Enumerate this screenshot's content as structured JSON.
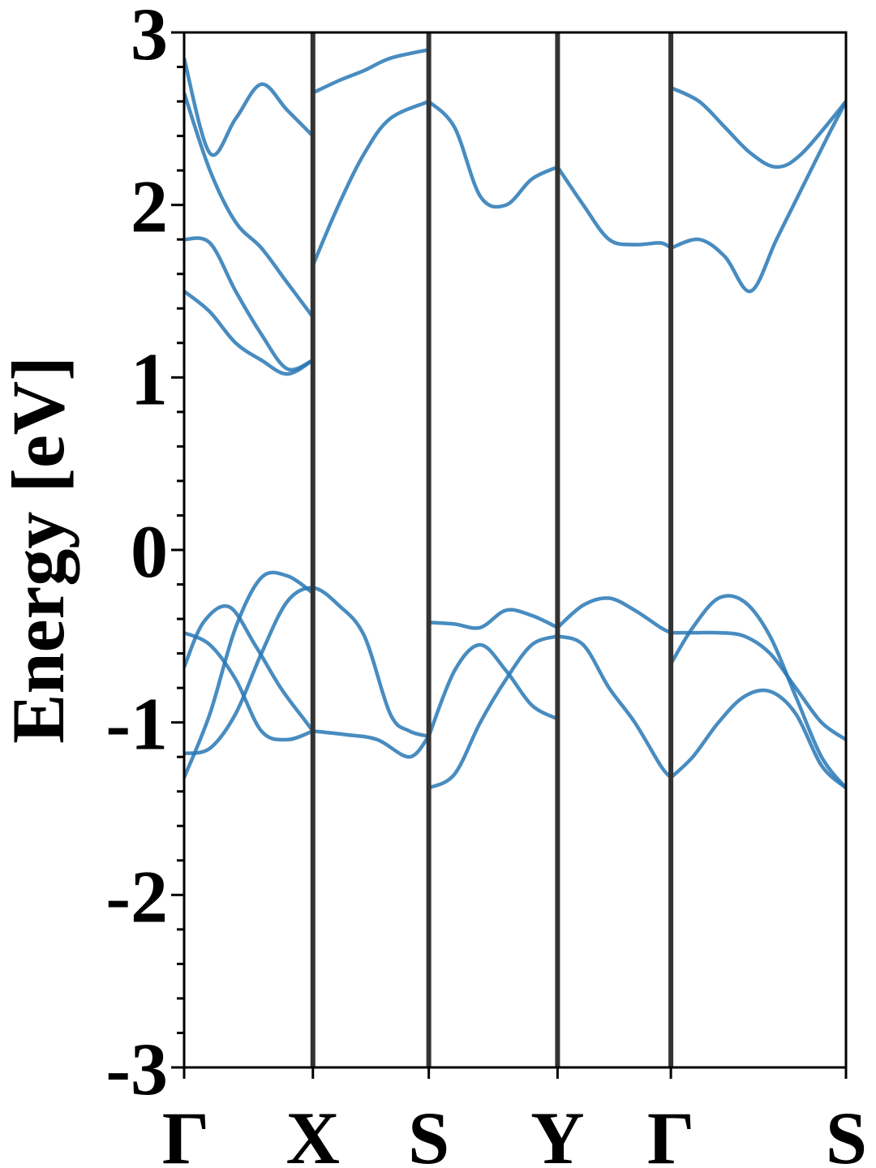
{
  "chart_data": {
    "type": "line",
    "title": "",
    "ylabel": "Energy [eV]",
    "xlabel": "",
    "ylim": [
      -3,
      3
    ],
    "y_ticks": [
      "-3",
      "-2",
      "-1",
      "0",
      "1",
      "2",
      "3"
    ],
    "y_minor_step": 0.2,
    "grid": false,
    "legend": "none",
    "line_color": "#2878b5",
    "kpath": [
      {
        "label": "Γ",
        "x": 0.0
      },
      {
        "label": "X",
        "x": 1.0
      },
      {
        "label": "S",
        "x": 1.9
      },
      {
        "label": "Y",
        "x": 2.9
      },
      {
        "label": "Γ",
        "x": 3.78
      },
      {
        "label": "S",
        "x": 5.14
      }
    ],
    "series": [
      {
        "x": [
          0.0,
          0.2,
          0.4,
          0.6,
          0.8,
          1.0,
          1.2,
          1.4,
          1.6,
          1.75,
          1.9
        ],
        "values": [
          -1.18,
          -1.15,
          -0.95,
          -0.6,
          -0.3,
          -0.22,
          -0.32,
          -0.5,
          -0.95,
          -1.05,
          -1.08
        ]
      },
      {
        "x": [
          0.0,
          0.2,
          0.4,
          0.6,
          0.8,
          1.0
        ],
        "values": [
          -1.32,
          -0.95,
          -0.45,
          -0.16,
          -0.15,
          -0.25
        ]
      },
      {
        "x": [
          0.0,
          0.2,
          0.4,
          0.6,
          0.8,
          1.0
        ],
        "values": [
          -0.48,
          -0.55,
          -0.75,
          -1.05,
          -1.1,
          -1.05
        ]
      },
      {
        "x": [
          0.0,
          0.15,
          0.35,
          0.55,
          0.75,
          0.95,
          1.0
        ],
        "values": [
          -0.68,
          -0.42,
          -0.33,
          -0.55,
          -0.8,
          -1.0,
          -1.05
        ]
      },
      {
        "x": [
          1.0,
          1.25,
          1.5,
          1.75,
          1.9
        ],
        "values": [
          -1.05,
          -1.07,
          -1.1,
          -1.2,
          -1.08
        ]
      },
      {
        "x": [
          1.9,
          2.1,
          2.3,
          2.5,
          2.7,
          2.9
        ],
        "values": [
          -1.08,
          -0.7,
          -0.55,
          -0.7,
          -0.9,
          -0.98
        ]
      },
      {
        "x": [
          1.9,
          2.1,
          2.3,
          2.5,
          2.7,
          2.9
        ],
        "values": [
          -1.38,
          -1.3,
          -1.0,
          -0.75,
          -0.55,
          -0.5
        ]
      },
      {
        "x": [
          1.9,
          2.1,
          2.3,
          2.5,
          2.7,
          2.9
        ],
        "values": [
          -0.42,
          -0.43,
          -0.45,
          -0.35,
          -0.38,
          -0.45
        ]
      },
      {
        "x": [
          2.9,
          3.1,
          3.3,
          3.5,
          3.7,
          3.78
        ],
        "values": [
          -0.45,
          -0.32,
          -0.28,
          -0.35,
          -0.45,
          -0.48
        ]
      },
      {
        "x": [
          2.9,
          3.1,
          3.3,
          3.5,
          3.7,
          3.78
        ],
        "values": [
          -0.5,
          -0.55,
          -0.8,
          -1.0,
          -1.25,
          -1.32
        ]
      },
      {
        "x": [
          3.78,
          3.95,
          4.15,
          4.35,
          4.55,
          4.75,
          4.95,
          5.14
        ],
        "values": [
          -0.48,
          -0.48,
          -0.48,
          -0.5,
          -0.6,
          -0.8,
          -1.0,
          -1.1
        ]
      },
      {
        "x": [
          3.78,
          3.95,
          4.15,
          4.35,
          4.55,
          4.75,
          4.95,
          5.14
        ],
        "values": [
          -0.66,
          -0.45,
          -0.28,
          -0.3,
          -0.5,
          -0.85,
          -1.2,
          -1.38
        ]
      },
      {
        "x": [
          3.78,
          3.95,
          4.15,
          4.35,
          4.55,
          4.75,
          4.95,
          5.14
        ],
        "values": [
          -1.32,
          -1.2,
          -1.0,
          -0.85,
          -0.82,
          -0.95,
          -1.25,
          -1.38
        ]
      },
      {
        "x": [
          0.0,
          0.2,
          0.4,
          0.6,
          0.8,
          1.0
        ],
        "values": [
          2.65,
          2.2,
          1.9,
          1.75,
          1.55,
          1.35
        ]
      },
      {
        "x": [
          0.0,
          0.2,
          0.4,
          0.6,
          0.8,
          1.0
        ],
        "values": [
          2.85,
          2.3,
          2.5,
          2.7,
          2.55,
          2.4
        ]
      },
      {
        "x": [
          0.0,
          0.2,
          0.4,
          0.6,
          0.8,
          1.0
        ],
        "values": [
          1.8,
          1.78,
          1.5,
          1.25,
          1.05,
          1.1
        ]
      },
      {
        "x": [
          0.0,
          0.2,
          0.4,
          0.6,
          0.8,
          1.0
        ],
        "values": [
          1.5,
          1.38,
          1.2,
          1.1,
          1.02,
          1.1
        ]
      },
      {
        "x": [
          1.0,
          1.2,
          1.4,
          1.6,
          1.9
        ],
        "values": [
          2.65,
          2.72,
          2.78,
          2.85,
          2.9
        ]
      },
      {
        "x": [
          1.0,
          1.2,
          1.4,
          1.6,
          1.9
        ],
        "values": [
          1.65,
          2.0,
          2.3,
          2.5,
          2.6
        ]
      },
      {
        "x": [
          1.9,
          2.1,
          2.3,
          2.5,
          2.7,
          2.9
        ],
        "values": [
          2.6,
          2.45,
          2.05,
          2.0,
          2.15,
          2.22
        ]
      },
      {
        "x": [
          2.9,
          3.1,
          3.3,
          3.5,
          3.7,
          3.78
        ],
        "values": [
          2.22,
          2.0,
          1.8,
          1.77,
          1.78,
          1.75
        ]
      },
      {
        "x": [
          3.78,
          4.0,
          4.2,
          4.4,
          4.6,
          4.8,
          5.0,
          5.14
        ],
        "values": [
          1.75,
          1.8,
          1.7,
          1.5,
          1.8,
          2.1,
          2.4,
          2.6
        ]
      },
      {
        "x": [
          3.78,
          4.0,
          4.2,
          4.4,
          4.6,
          4.8,
          5.14
        ],
        "values": [
          2.68,
          2.6,
          2.45,
          2.3,
          2.22,
          2.3,
          2.6
        ]
      }
    ]
  }
}
